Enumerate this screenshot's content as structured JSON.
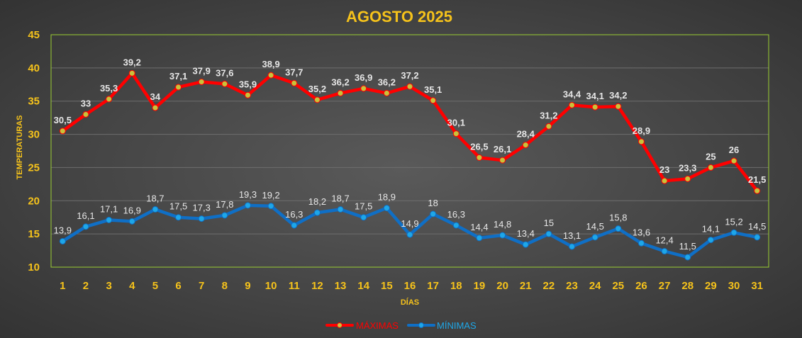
{
  "chart_data": {
    "type": "line",
    "title": "AGOSTO 2025",
    "xlabel": "DÍAS",
    "ylabel": "TEMPERATURAS",
    "ylim": [
      10,
      45
    ],
    "yticks": [
      10,
      15,
      20,
      25,
      30,
      35,
      40,
      45
    ],
    "grid": true,
    "legend_position": "bottom",
    "categories": [
      "1",
      "2",
      "3",
      "4",
      "5",
      "6",
      "7",
      "8",
      "9",
      "10",
      "11",
      "12",
      "13",
      "14",
      "15",
      "16",
      "17",
      "18",
      "19",
      "20",
      "21",
      "22",
      "23",
      "24",
      "25",
      "26",
      "27",
      "28",
      "29",
      "30",
      "31"
    ],
    "series": [
      {
        "name": "MÁXIMAS",
        "color": "#ff0000",
        "marker_color": "#c9c23a",
        "values": [
          30.5,
          33,
          35.3,
          39.2,
          34,
          37.1,
          37.9,
          37.6,
          35.9,
          38.9,
          37.7,
          35.2,
          36.2,
          36.9,
          36.2,
          37.2,
          35.1,
          30.1,
          26.5,
          26.1,
          28.4,
          31.2,
          34.4,
          34.1,
          34.2,
          28.9,
          23,
          23.3,
          25,
          26,
          21.5
        ],
        "labels": [
          "30,5",
          "33",
          "35,3",
          "39,2",
          "34",
          "37,1",
          "37,9",
          "37,6",
          "35,9",
          "38,9",
          "37,7",
          "35,2",
          "36,2",
          "36,9",
          "36,2",
          "37,2",
          "35,1",
          "30,1",
          "26,5",
          "26,1",
          "28,4",
          "31,2",
          "34,4",
          "34,1",
          "34,2",
          "28,9",
          "23",
          "23,3",
          "25",
          "26",
          "21,5"
        ]
      },
      {
        "name": "MÍNIMAS",
        "color": "#0f6fc6",
        "marker_color": "#1ea7e8",
        "values": [
          13.9,
          16.1,
          17.1,
          16.9,
          18.7,
          17.5,
          17.3,
          17.8,
          19.3,
          19.2,
          16.3,
          18.2,
          18.7,
          17.5,
          18.9,
          14.9,
          18,
          16.3,
          14.4,
          14.8,
          13.4,
          15,
          13.1,
          14.5,
          15.8,
          13.6,
          12.4,
          11.5,
          14.1,
          15.2,
          14.5
        ],
        "labels": [
          "13,9",
          "16,1",
          "17,1",
          "16,9",
          "18,7",
          "17,5",
          "17,3",
          "17,8",
          "19,3",
          "19,2",
          "16,3",
          "18,2",
          "18,7",
          "17,5",
          "18,9",
          "14,9",
          "18",
          "16,3",
          "14,4",
          "14,8",
          "13,4",
          "15",
          "13,1",
          "14,5",
          "15,8",
          "13,6",
          "12,4",
          "11,5",
          "14,1",
          "15,2",
          "14,5"
        ]
      }
    ]
  }
}
